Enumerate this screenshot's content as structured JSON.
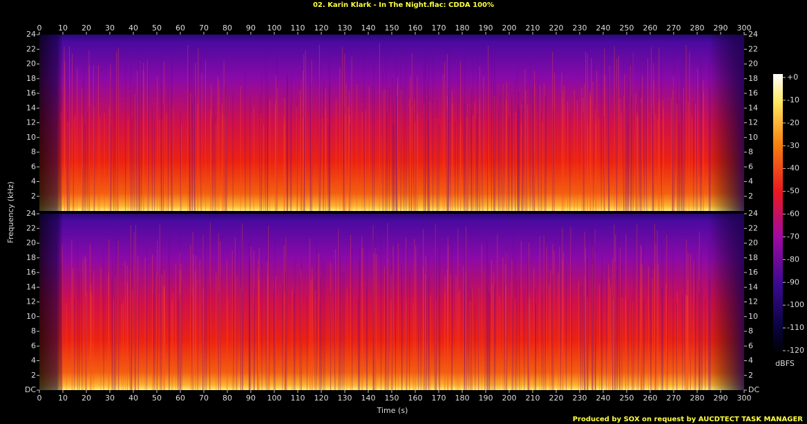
{
  "chart_data": {
    "type": "spectrogram",
    "title": "02. Karin Klark - In The Night.flac: CDDA 100%",
    "xlabel": "Time (s)",
    "ylabel": "Frequency (kHz)",
    "xlim": [
      0,
      300
    ],
    "xticks": [
      0,
      10,
      20,
      30,
      40,
      50,
      60,
      70,
      80,
      90,
      100,
      110,
      120,
      130,
      140,
      150,
      160,
      170,
      180,
      190,
      200,
      210,
      220,
      230,
      240,
      250,
      260,
      270,
      280,
      290,
      300
    ],
    "panels": [
      {
        "ylim": [
          0,
          24
        ],
        "yticks": [
          2,
          4,
          6,
          8,
          10,
          12,
          14,
          16,
          18,
          20,
          22,
          24
        ]
      },
      {
        "ylim": [
          0,
          24
        ],
        "yticks": [
          {
            "value": 0,
            "label": "DC"
          },
          2,
          4,
          6,
          8,
          10,
          12,
          14,
          16,
          18,
          20,
          22,
          24
        ]
      }
    ],
    "colorbar": {
      "label": "dBFS",
      "lim": [
        -120,
        0
      ],
      "ticks": [
        {
          "value": 0,
          "label": "+0"
        },
        -10,
        -20,
        -30,
        -40,
        -50,
        -60,
        -70,
        -80,
        -90,
        -100,
        -110,
        -120
      ]
    },
    "footer": "Produced by SOX on request by AUCDTECT TASK MANAGER"
  }
}
